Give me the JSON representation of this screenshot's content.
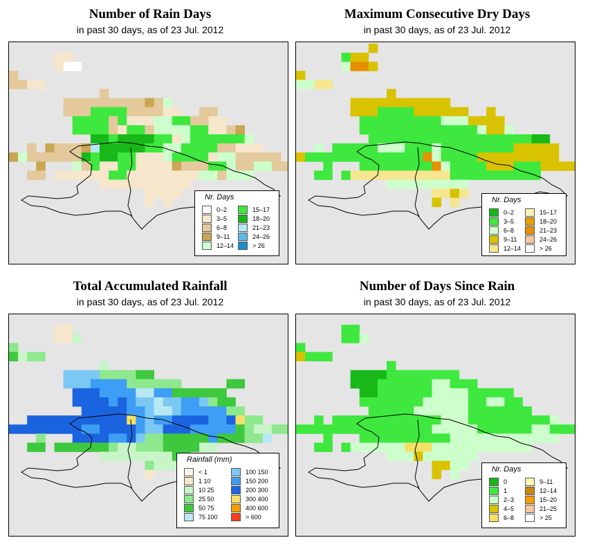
{
  "panels": [
    {
      "id": "rain-days",
      "title": "Number of Rain Days",
      "subtitle": "in past 30 days, as of  23 Jul. 2012",
      "legend_title": "Nr. Days",
      "legend_items": [
        {
          "label": "0–2",
          "color": "#ffffff"
        },
        {
          "label": "3–5",
          "color": "#f5e6cc"
        },
        {
          "label": "6–8",
          "color": "#e3c99b"
        },
        {
          "label": "9–11",
          "color": "#c9a651"
        },
        {
          "label": "12–14",
          "color": "#ccffcc"
        },
        {
          "label": "15–17",
          "color": "#3ee83e"
        },
        {
          "label": "18–20",
          "color": "#18b818"
        },
        {
          "label": "21–23",
          "color": "#b8e8f5"
        },
        {
          "label": "24–26",
          "color": "#5cb8e8"
        },
        {
          "label": "> 26",
          "color": "#1a8fd0"
        }
      ],
      "palette_char": {
        "a": "#f5e6cc",
        "b": "#e3c99b",
        "c": "#c9a651",
        "d": "#ccffcc",
        "e": "#3ee83e",
        "f": "#18b818",
        "g": "#b8e8f5",
        "w": "#ffffff"
      },
      "grid": [
        "................................",
        ".....aa.........................",
        ".....aww........................",
        "b...............................",
        "bbaa............................",
        "..........b.....................",
        "......bbbbbbbbbcbd..............",
        "......bbbeeeebbbbaa..bb.........",
        ".......eeeebeaaaddeebbaa........",
        ".......eeeebaeebddddeeaabc......",
        ".........ffeffffeeadeeeeeed.....",
        "..b.cbbbcgfffffeeddeeeebbaaa....",
        "cdbbbbbbfeffeeaaadeeeeaddbbbbb..",
        "...c...dbeaaeeaaaacbbbeedbbddbb.",
        "..bb.aaaaaaeeaaaaaaaaddbddd.....",
        "..........aaaaaaaaaa............",
        "...............aaaa.............",
        "...............a.a.............."
      ]
    },
    {
      "id": "dry-days",
      "title": "Maximum Consecutive Dry Days",
      "subtitle": "in past 30 days, as of  23 Jul. 2012",
      "legend_title": "Nr. Days",
      "legend_items": [
        {
          "label": "0–2",
          "color": "#18b818"
        },
        {
          "label": "3–5",
          "color": "#3ee83e"
        },
        {
          "label": "6–8",
          "color": "#ccffcc"
        },
        {
          "label": "9–11",
          "color": "#d9c200"
        },
        {
          "label": "12–14",
          "color": "#f5e68f"
        },
        {
          "label": "15–17",
          "color": "#fff5b3"
        },
        {
          "label": "18–20",
          "color": "#e8a000"
        },
        {
          "label": "21–23",
          "color": "#e88f00"
        },
        {
          "label": "24–26",
          "color": "#f5c8a0"
        },
        {
          "label": "> 26",
          "color": "#ffffff"
        }
      ],
      "palette_char": {
        "a": "#f5e68f",
        "b": "#d9c200",
        "c": "#e88f00",
        "d": "#ccffcc",
        "e": "#3ee83e",
        "f": "#18b818",
        "g": "#f5c8a0"
      },
      "grid": [
        "........b.......................",
        ".....ebb........................",
        ".....dccb.......................",
        "b...............................",
        "ddaa............................",
        "..........b.....................",
        "......bbbbbbbbbbb...............",
        "......bbbeeeebbbbbb..b..........",
        ".......eeeeeeeeedddbbbb.........",
        ".......eeeeeeeeeeeeedbbd........",
        "........eeeeeeeeeeeeeeeeeeff....",
        "..d.eeeeedddeeedeeeeeeeebbbbb...",
        "beeeeeeeeeeeeecdeeeebbbbbbbbb...",
        "...e...eeeeeeeecdeeeebbbeeebbbb.",
        "..ee.eaaaaaaaaaaaeeeeeeeeee.....",
        "..........ddddddddd.............",
        "...............aaba.............",
        "...............b.a.............."
      ]
    },
    {
      "id": "total-rainfall",
      "title": "Total Accumulated Rainfall",
      "subtitle": "in past 30 days, as of  23 Jul. 2012",
      "legend_title": "Rainfall (mm)",
      "legend_items": [
        {
          "label": "< 1",
          "color": "#fdf5e6"
        },
        {
          "label": "1    10",
          "color": "#f5e6cc"
        },
        {
          "label": "10    25",
          "color": "#c8f5c8"
        },
        {
          "label": "25    50",
          "color": "#8ee88e"
        },
        {
          "label": "50    75",
          "color": "#3ec83e"
        },
        {
          "label": "75   100",
          "color": "#b8e8f5"
        },
        {
          "label": "100   150",
          "color": "#7cc8f5"
        },
        {
          "label": "150   200",
          "color": "#3e9ef5"
        },
        {
          "label": "200   300",
          "color": "#1a64e0"
        },
        {
          "label": "300   400",
          "color": "#f5e066"
        },
        {
          "label": "400   600",
          "color": "#f59e00"
        },
        {
          "label": "> 600",
          "color": "#f53e1a"
        }
      ],
      "palette_char": {
        "a": "#f5e6cc",
        "b": "#c8f5c8",
        "c": "#8ee88e",
        "d": "#3ec83e",
        "e": "#b8e8f5",
        "f": "#7cc8f5",
        "g": "#3e9ef5",
        "h": "#1a64e0",
        "y": "#f5e066"
      },
      "grid": [
        "................................",
        ".....aa.........................",
        ".....aab........................",
        "c...............................",
        "dbcc............................",
        "..........b.....................",
        "......ffffccccdd................",
        "......fffggggcccccc.....dd......",
        ".......hhhggggeeggdddddd........",
        ".......hhhhghgffeffggfcdd.......",
        "........hhhhhggfeefgggggcc......",
        "..hhhhhhhhhhhygfgghhhhgghycc....",
        "hhhhhhhhgghhhhgffhhhgggggdcbbcc.",
        "...c...hhhhgghfccdddddgdddcce...",
        "..dd.ddddddcbbcccddddbb.........",
        "..........bbbbbbbbdd............",
        "...............cbbb.............",
        "...............a................"
      ]
    },
    {
      "id": "days-since-rain",
      "title": "Number of Days Since Rain",
      "subtitle": "in past 30 days, as of  23 Jul. 2012",
      "legend_title": "Nr. Days",
      "legend_items": [
        {
          "label": "0",
          "color": "#18b818"
        },
        {
          "label": "1",
          "color": "#3ee83e"
        },
        {
          "label": "2–3",
          "color": "#ccffcc"
        },
        {
          "label": "4–5",
          "color": "#d9c200"
        },
        {
          "label": "6–8",
          "color": "#f5e066"
        },
        {
          "label": "9–11",
          "color": "#fff5b3"
        },
        {
          "label": "12–14",
          "color": "#c8860a"
        },
        {
          "label": "15–20",
          "color": "#f59e00"
        },
        {
          "label": "21–25",
          "color": "#f5c8a0"
        },
        {
          "label": "> 25",
          "color": "#ffffff"
        }
      ],
      "palette_char": {
        "a": "#f5e066",
        "b": "#d9c200",
        "d": "#ccffcc",
        "e": "#3ee83e",
        "f": "#18b818"
      },
      "grid": [
        "................................",
        ".....ee.........................",
        ".....eed........................",
        "e...............................",
        "beee............................",
        "..........e.....................",
        "......ffffeeeeeeee..............",
        "......fffeeeeeeddeee............",
        ".......ffeeeeeeddddeeeee........",
        ".......eeeeeeedddddeeddee.......",
        "........eeeeeddddddeeeeeee......",
        "..e.eeeeeeeeeeeedddeeeeeeeeed...",
        "eeeeeeeeeeeeeeedddddeeeeeeddeee.",
        "...e...eeeeeeeeeedddddddddddd...",
        "..ee.eddddddaaaddddddddddd......",
        "..........dddbdddddd............",
        "...............bbdd.............",
        "...............b.d.............."
      ]
    }
  ]
}
